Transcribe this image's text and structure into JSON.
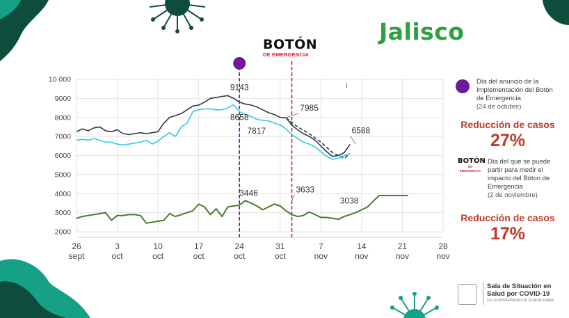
{
  "title": "Jalisco",
  "boton_logo": {
    "main": "BOTÓN",
    "sub": "DE EMERGENCIA"
  },
  "legend": {
    "marker1_text": "Día del anuncio de la Implementación del Botón de Emergencia",
    "marker1_date": "(24 de octubre)",
    "reduction1_label": "Reducción de casos",
    "reduction1_value": "27%",
    "marker2_text": "Día del que se puede partir para medir el impacto del Bóton de Emergencia",
    "marker2_date": "(2 de noviembre)",
    "reduction2_label": "Reducción de casos",
    "reduction2_value": "17%"
  },
  "footer": {
    "line1": "Sala de Situación en",
    "line2": "Salud por COVID-19",
    "line3": "DE LA UNIVERSIDAD DE GUADALAJARA"
  },
  "colors": {
    "title_green": "#2ea043",
    "series_dark": "#2b3a42",
    "series_cyan": "#35c8e8",
    "series_green": "#4a7a2a",
    "marker_purple": "#6a1b9a",
    "marker_red": "#c0202a",
    "reduction_red": "#c0392b",
    "deco_dark": "#0e4d3c",
    "deco_teal": "#16a085"
  },
  "chart_data": {
    "type": "line",
    "x_start": "2020-09-26",
    "x_range_days": [
      0,
      35
    ],
    "ylim": [
      1800,
      10000
    ],
    "yticks": [
      2000,
      3000,
      4000,
      5000,
      6000,
      7000,
      8000,
      9000,
      10000
    ],
    "ytick_labels": [
      "2000",
      "3000",
      "4000",
      "5000",
      "6000",
      "7000",
      "8000",
      "9000",
      "10 000"
    ],
    "xticks": [
      {
        "day": 0,
        "line1": "26",
        "line2": "sept"
      },
      {
        "day": 7,
        "line1": "3",
        "line2": "oct"
      },
      {
        "day": 14,
        "line1": "10",
        "line2": "oct"
      },
      {
        "day": 21,
        "line1": "17",
        "line2": "oct"
      },
      {
        "day": 28,
        "line1": "24",
        "line2": "oct"
      },
      {
        "day": 35,
        "line1": "31",
        "line2": "oct"
      },
      {
        "day": 42,
        "line1": "7",
        "line2": "nov"
      },
      {
        "day": 49,
        "line1": "14",
        "line2": "nov"
      },
      {
        "day": 56,
        "line1": "21",
        "line2": "nov"
      },
      {
        "day": 63,
        "line1": "28",
        "line2": "nov"
      }
    ],
    "grid": true,
    "series": [
      {
        "key": "dark",
        "x": [
          0,
          1,
          2,
          3,
          4,
          5,
          6,
          7,
          8,
          9,
          10,
          11,
          12,
          13,
          14,
          15,
          16,
          17,
          18,
          19,
          20,
          21,
          22,
          23,
          24,
          25,
          26,
          27,
          28,
          29,
          30,
          31,
          32,
          33,
          34,
          35,
          36,
          37,
          38,
          39,
          40,
          41,
          42,
          43,
          44,
          45,
          46,
          47
        ],
        "y": [
          7250,
          7400,
          7300,
          7450,
          7500,
          7300,
          7250,
          7350,
          7150,
          7100,
          7150,
          7200,
          7150,
          7200,
          7250,
          7700,
          8000,
          8100,
          8200,
          8400,
          8600,
          8650,
          8800,
          9000,
          9050,
          9100,
          9143,
          9000,
          8800,
          8700,
          8650,
          8550,
          8400,
          8250,
          8150,
          8000,
          7985,
          7600,
          7350,
          7150,
          7000,
          6800,
          6500,
          6200,
          5950,
          6000,
          6150,
          6588
        ]
      },
      {
        "key": "dashed",
        "x": [
          36,
          38,
          40,
          42,
          44,
          46,
          47
        ],
        "y": [
          7985,
          7500,
          7150,
          6700,
          6150,
          5850,
          6100
        ]
      },
      {
        "key": "cyan",
        "x": [
          0,
          1,
          2,
          3,
          4,
          5,
          6,
          7,
          8,
          9,
          10,
          11,
          12,
          13,
          14,
          15,
          16,
          17,
          18,
          19,
          20,
          21,
          22,
          23,
          24,
          25,
          26,
          27,
          28,
          29,
          30,
          31,
          32,
          33,
          34,
          35,
          36,
          37,
          38,
          39,
          40,
          41,
          42,
          43,
          44,
          45,
          46,
          47
        ],
        "y": [
          6800,
          6850,
          6800,
          6900,
          6800,
          6700,
          6700,
          6600,
          6550,
          6600,
          6650,
          6700,
          6800,
          6600,
          6750,
          7000,
          7200,
          7000,
          7500,
          7700,
          8300,
          8400,
          8450,
          8450,
          8400,
          8400,
          8500,
          8658,
          8300,
          8150,
          8050,
          7900,
          7850,
          7817,
          7700,
          7600,
          7400,
          7100,
          6900,
          6700,
          6600,
          6450,
          6200,
          5950,
          5800,
          5850,
          6000,
          6100
        ]
      },
      {
        "key": "green",
        "x": [
          0,
          1,
          2,
          3,
          4,
          5,
          6,
          7,
          8,
          9,
          10,
          11,
          12,
          13,
          14,
          15,
          16,
          17,
          18,
          19,
          20,
          21,
          22,
          23,
          24,
          25,
          26,
          27,
          28,
          29,
          30,
          31,
          32,
          33,
          34,
          35,
          36,
          37,
          38,
          39,
          40,
          41,
          42,
          43,
          44,
          45,
          46,
          47,
          48,
          49,
          50,
          51,
          52,
          53,
          54,
          55,
          56,
          57
        ],
        "y": [
          2700,
          2800,
          2850,
          2900,
          2950,
          3000,
          2600,
          2850,
          2850,
          2900,
          2900,
          2850,
          2450,
          2500,
          2550,
          2600,
          2950,
          2800,
          2900,
          3000,
          3100,
          3446,
          3300,
          2900,
          3200,
          2800,
          3300,
          3350,
          3400,
          3633,
          3500,
          3350,
          3150,
          3300,
          3450,
          3350,
          3100,
          2900,
          2800,
          2850,
          3038,
          2900,
          2750,
          2750,
          2700,
          2650,
          2800,
          2900,
          3000,
          3150,
          3300,
          3600,
          3900,
          3900,
          3900,
          3900,
          3900,
          3900
        ]
      }
    ],
    "annotations": [
      {
        "text": "9143",
        "x": 28,
        "y": 9143
      },
      {
        "text": "8658",
        "x": 28,
        "y": 8658
      },
      {
        "text": "7817",
        "x": 33,
        "y": 7817
      },
      {
        "text": "7985",
        "x": 36,
        "y": 7985
      },
      {
        "text": "6588",
        "x": 48,
        "y": 6588
      },
      {
        "text": "3446",
        "x": 28,
        "y": 3446
      },
      {
        "text": "3633",
        "x": 37,
        "y": 3633
      },
      {
        "text": "3038",
        "x": 46,
        "y": 3038
      }
    ],
    "vlines": [
      {
        "day": 28,
        "color": "purple",
        "style": "dashed"
      },
      {
        "day": 37,
        "color": "red",
        "style": "dashed"
      }
    ]
  }
}
